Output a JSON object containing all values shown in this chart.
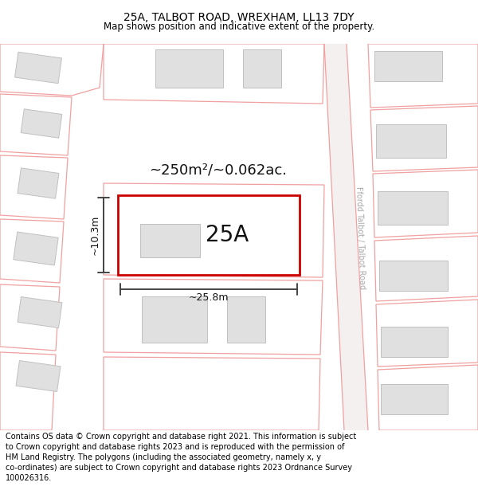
{
  "title": "25A, TALBOT ROAD, WREXHAM, LL13 7DY",
  "subtitle": "Map shows position and indicative extent of the property.",
  "footer": "Contains OS data © Crown copyright and database right 2021. This information is subject\nto Crown copyright and database rights 2023 and is reproduced with the permission of\nHM Land Registry. The polygons (including the associated geometry, namely x, y\nco-ordinates) are subject to Crown copyright and database rights 2023 Ordnance Survey\n100026316.",
  "bg_color": "#ffffff",
  "building_fill": "#e0e0e0",
  "building_edge": "#c0c0c0",
  "cadastral_color": "#f0a0a0",
  "property_fill": "#ffffff",
  "property_edge": "#cc0000",
  "property_label": "25A",
  "area_label": "~250m²/~0.062ac.",
  "width_label": "~25.8m",
  "height_label": "~10.3m",
  "road_label": "Ffordd Talbot / Talbot Road",
  "title_fontsize": 10,
  "subtitle_fontsize": 8.5,
  "footer_fontsize": 7,
  "label_fontsize": 7.5,
  "arrow_color": "#444444"
}
